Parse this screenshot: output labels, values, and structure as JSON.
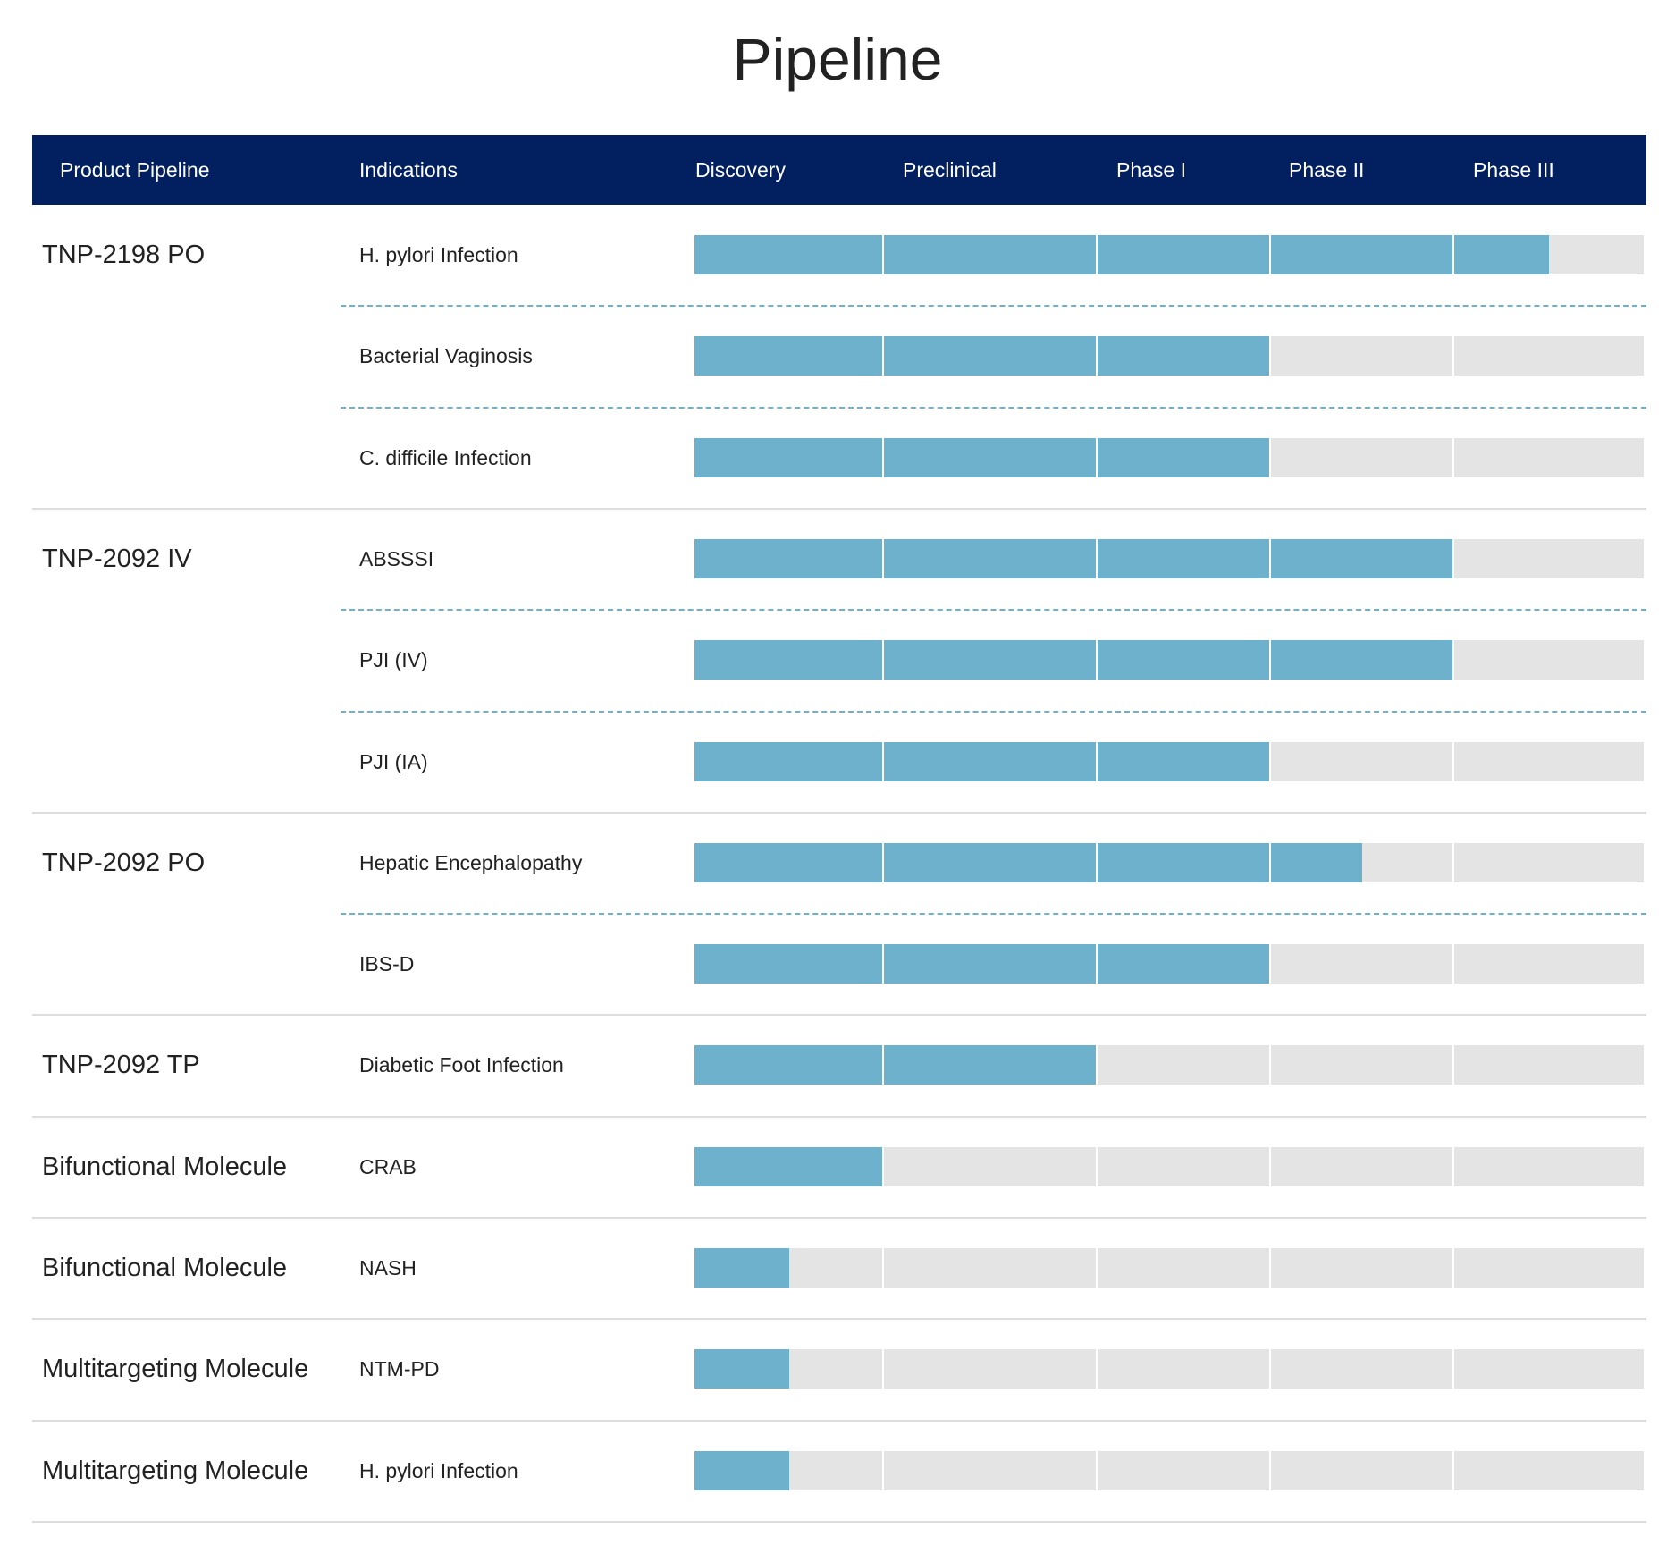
{
  "title": "Pipeline",
  "header": {
    "product": "Product Pipeline",
    "indications": "Indications",
    "stages": [
      "Discovery",
      "Preclinical",
      "Phase I",
      "Phase II",
      "Phase III"
    ]
  },
  "colors": {
    "header_bg": "#021f60",
    "bar_fill": "#6eb1cd",
    "bar_track": "#e4e4e4",
    "dashed_separator": "#6eb1cd"
  },
  "chart_data": {
    "type": "bar",
    "orientation": "horizontal",
    "stage_scale": "stages completed (0 = start of Discovery, 5 = end of Phase III)",
    "categories": [
      "Discovery",
      "Preclinical",
      "Phase I",
      "Phase II",
      "Phase III"
    ],
    "groups": [
      {
        "product": "TNP-2198 PO",
        "rows": [
          {
            "indication": "H. pylori Infection",
            "progress": 4.5
          },
          {
            "indication": "Bacterial Vaginosis",
            "progress": 3.0
          },
          {
            "indication": "C. difficile Infection",
            "progress": 3.0
          }
        ]
      },
      {
        "product": "TNP-2092 IV",
        "rows": [
          {
            "indication": "ABSSSI",
            "progress": 4.0
          },
          {
            "indication": "PJI (IV)",
            "progress": 4.0
          },
          {
            "indication": "PJI (IA)",
            "progress": 3.0
          }
        ]
      },
      {
        "product": "TNP-2092 PO",
        "rows": [
          {
            "indication": "Hepatic Encephalopathy",
            "progress": 3.5
          },
          {
            "indication": "IBS-D",
            "progress": 3.0
          }
        ]
      },
      {
        "product": "TNP-2092 TP",
        "rows": [
          {
            "indication": "Diabetic Foot Infection",
            "progress": 2.0
          }
        ]
      },
      {
        "product": "Bifunctional Molecule",
        "rows": [
          {
            "indication": "CRAB",
            "progress": 1.0
          }
        ]
      },
      {
        "product": "Bifunctional Molecule",
        "rows": [
          {
            "indication": "NASH",
            "progress": 0.5
          }
        ]
      },
      {
        "product": "Multitargeting Molecule",
        "rows": [
          {
            "indication": "NTM-PD",
            "progress": 0.5
          }
        ]
      },
      {
        "product": "Multitargeting Molecule",
        "rows": [
          {
            "indication": "H. pylori Infection",
            "progress": 0.5
          }
        ]
      }
    ]
  }
}
